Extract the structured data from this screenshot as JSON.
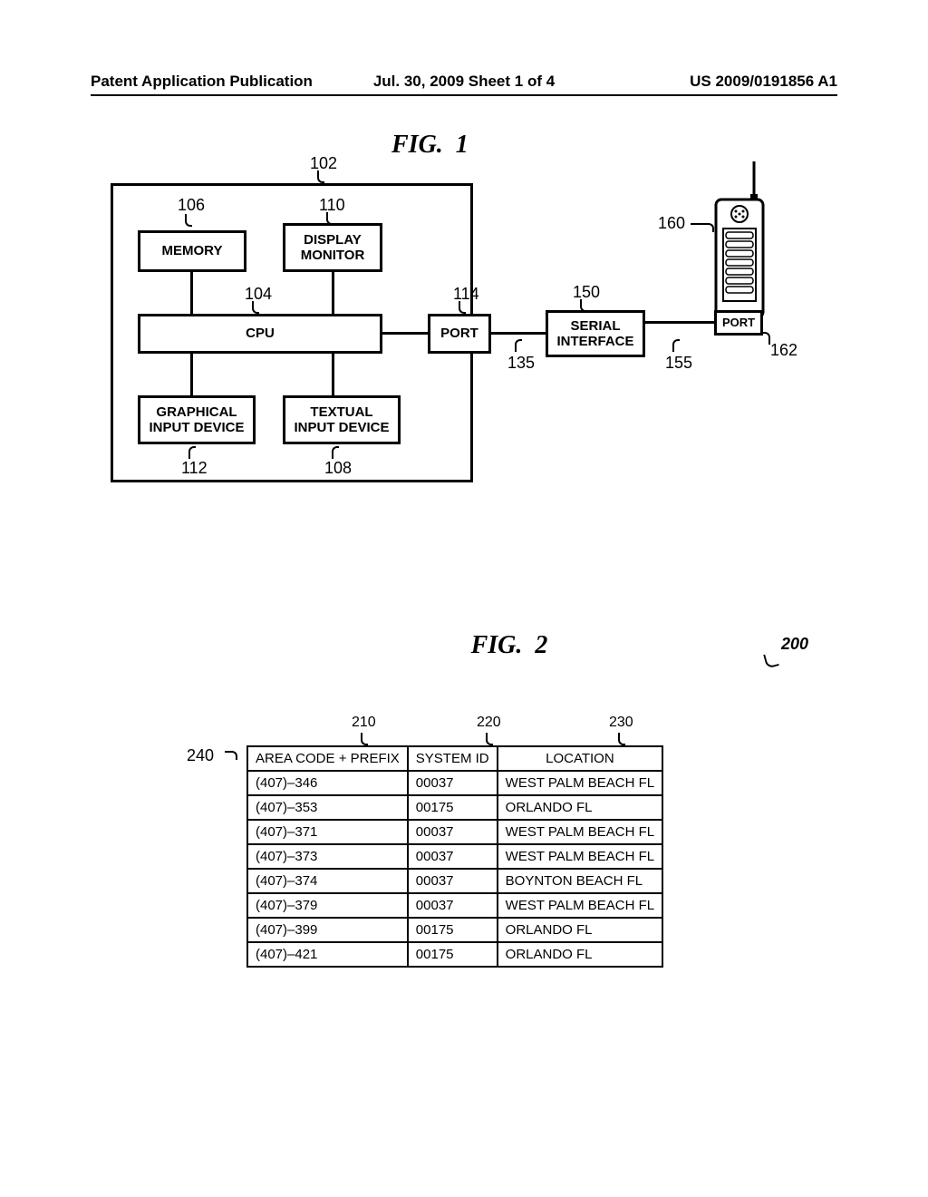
{
  "header": {
    "left": "Patent Application Publication",
    "mid": "Jul. 30, 2009  Sheet 1 of 4",
    "right": "US 2009/0191856 A1"
  },
  "fig1": {
    "title_prefix": "FIG.",
    "title_num": "1",
    "refs": {
      "r102": "102",
      "r106": "106",
      "r110": "110",
      "r104": "104",
      "r114": "114",
      "r150": "150",
      "r160": "160",
      "r162": "162",
      "r135": "135",
      "r155": "155",
      "r112": "112",
      "r108": "108"
    },
    "blocks": {
      "memory": "MEMORY",
      "display": "DISPLAY\nMONITOR",
      "cpu": "CPU",
      "port": "PORT",
      "serial": "SERIAL\nINTERFACE",
      "gid": "GRAPHICAL\nINPUT DEVICE",
      "tid": "TEXTUAL\nINPUT DEVICE",
      "port2": "PORT"
    }
  },
  "fig2": {
    "title_prefix": "FIG.",
    "title_num": "2",
    "ref200": "200",
    "col_refs": {
      "c1": "210",
      "c2": "220",
      "c3": "230"
    },
    "row_ref": "240",
    "headers": [
      "AREA CODE + PREFIX",
      "SYSTEM ID",
      "LOCATION"
    ],
    "rows": [
      [
        "(407)–346",
        "00037",
        "WEST PALM BEACH FL"
      ],
      [
        "(407)–353",
        "00175",
        "ORLANDO FL"
      ],
      [
        "(407)–371",
        "00037",
        "WEST PALM BEACH FL"
      ],
      [
        "(407)–373",
        "00037",
        "WEST PALM BEACH FL"
      ],
      [
        "(407)–374",
        "00037",
        "BOYNTON BEACH FL"
      ],
      [
        "(407)–379",
        "00037",
        "WEST PALM BEACH FL"
      ],
      [
        "(407)–399",
        "00175",
        "ORLANDO FL"
      ],
      [
        "(407)–421",
        "00175",
        "ORLANDO FL"
      ]
    ]
  }
}
